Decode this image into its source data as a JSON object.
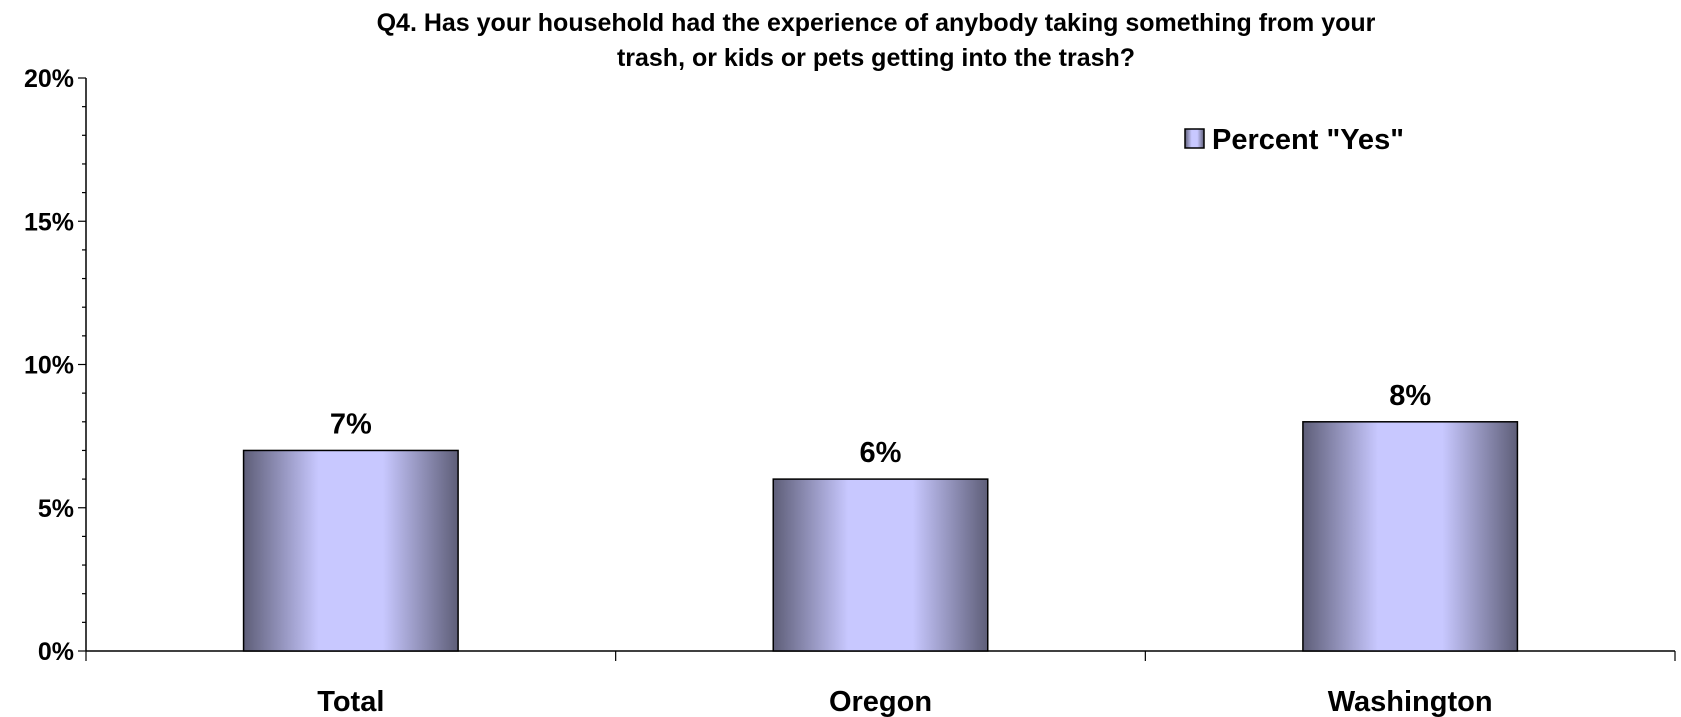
{
  "chart_data": {
    "type": "bar",
    "title_lines": [
      "Q4. Has your household had the experience of anybody taking something from your",
      "trash, or kids or pets getting into the trash?"
    ],
    "categories": [
      "Total",
      "Oregon",
      "Washington"
    ],
    "series": [
      {
        "name": "Percent \"Yes\"",
        "values": [
          7,
          6,
          8
        ],
        "labels": [
          "7%",
          "6%",
          "8%"
        ]
      }
    ],
    "ylim": [
      0,
      20
    ],
    "yticks": [
      0,
      5,
      10,
      15,
      20
    ],
    "ytick_labels": [
      "0%",
      "5%",
      "10%",
      "15%",
      "20%"
    ],
    "ylabel": "",
    "xlabel": "",
    "grid": false,
    "legend_position": "top-right",
    "colors": {
      "bar_center": "#c8c8ff",
      "bar_edge": "#5e5e78",
      "axis": "#000000"
    }
  }
}
